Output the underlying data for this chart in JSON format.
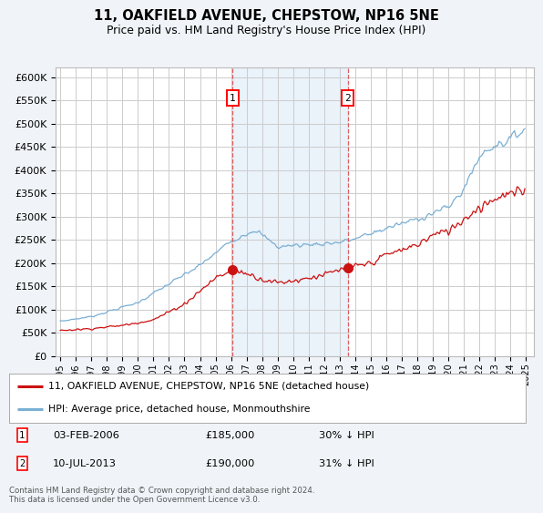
{
  "title": "11, OAKFIELD AVENUE, CHEPSTOW, NP16 5NE",
  "subtitle": "Price paid vs. HM Land Registry's House Price Index (HPI)",
  "yticks": [
    0,
    50000,
    100000,
    150000,
    200000,
    250000,
    300000,
    350000,
    400000,
    450000,
    500000,
    550000,
    600000
  ],
  "ytick_labels": [
    "£0",
    "£50K",
    "£100K",
    "£150K",
    "£200K",
    "£250K",
    "£300K",
    "£350K",
    "£400K",
    "£450K",
    "£500K",
    "£550K",
    "£600K"
  ],
  "hpi_color": "#7aafd4",
  "price_color": "#cc1111",
  "sale1_x": 2006.09,
  "sale1_price": 185000,
  "sale2_x": 2013.53,
  "sale2_price": 190000,
  "legend_property": "11, OAKFIELD AVENUE, CHEPSTOW, NP16 5NE (detached house)",
  "legend_hpi": "HPI: Average price, detached house, Monmouthshire",
  "footnote": "Contains HM Land Registry data © Crown copyright and database right 2024.\nThis data is licensed under the Open Government Licence v3.0.",
  "background_color": "#f0f4f8",
  "plot_bg_color": "#ffffff",
  "grid_color": "#cccccc",
  "shaded_color": "#ddeaf7",
  "vline_color": "#dd4444",
  "ylim_max": 620000,
  "xmin": 1994.7,
  "xmax": 2025.5
}
